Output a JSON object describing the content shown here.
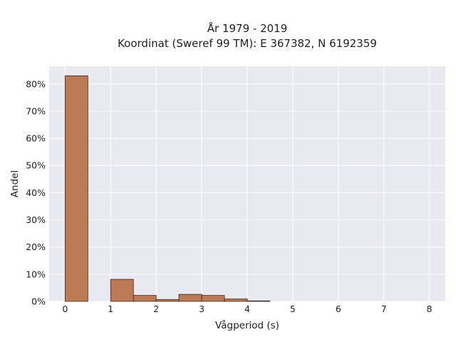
{
  "chart_data": {
    "type": "bar",
    "title_lines": [
      "År 1979 - 2019",
      "Koordinat (Sweref 99 TM): E 367382, N 6192359"
    ],
    "xlabel": "Vågperiod (s)",
    "ylabel": "Andel",
    "x_ticks": [
      "0",
      "1",
      "2",
      "3",
      "4",
      "5",
      "6",
      "7",
      "8"
    ],
    "y_ticks": [
      "0%",
      "10%",
      "20%",
      "30%",
      "40%",
      "50%",
      "60%",
      "70%",
      "80%"
    ],
    "xlim": [
      -0.35,
      8.35
    ],
    "ylim": [
      0,
      86.5
    ],
    "grid": true,
    "bar_color": "#bb7a55",
    "background_color": "#e9e9f1",
    "bins": [
      {
        "x0": 0.0,
        "x1": 0.5,
        "value": 83.0
      },
      {
        "x0": 0.5,
        "x1": 1.0,
        "value": 0.0
      },
      {
        "x0": 1.0,
        "x1": 1.5,
        "value": 8.1
      },
      {
        "x0": 1.5,
        "x1": 2.0,
        "value": 2.2
      },
      {
        "x0": 2.0,
        "x1": 2.5,
        "value": 0.7
      },
      {
        "x0": 2.5,
        "x1": 3.0,
        "value": 2.6
      },
      {
        "x0": 3.0,
        "x1": 3.5,
        "value": 2.2
      },
      {
        "x0": 3.5,
        "x1": 4.0,
        "value": 0.9
      },
      {
        "x0": 4.0,
        "x1": 4.5,
        "value": 0.2
      }
    ]
  }
}
